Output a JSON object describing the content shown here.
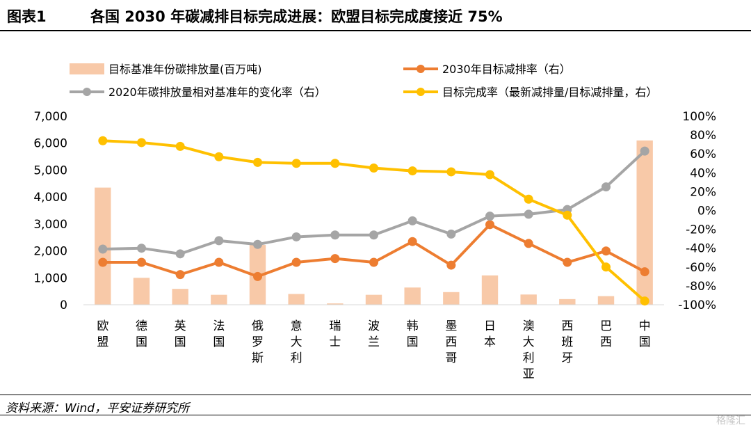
{
  "header": {
    "figure_no": "图表1",
    "title": "各国 2030 年碳减排目标完成进展：欧盟目标完成度接近 75%"
  },
  "footer": {
    "source": "资料来源：Wind，平安证券研究所",
    "watermark": "格隆汇"
  },
  "chart_data": {
    "type": "bar",
    "categories": [
      "欧盟",
      "德国",
      "英国",
      "法国",
      "俄罗斯",
      "意大利",
      "瑞士",
      "波兰",
      "韩国",
      "墨西哥",
      "日本",
      "澳大利亚",
      "西班牙",
      "巴西",
      "中国"
    ],
    "left_axis": {
      "ylim": [
        0,
        7000
      ],
      "ticks": [
        0,
        1000,
        2000,
        3000,
        4000,
        5000,
        6000,
        7000
      ],
      "tick_labels": [
        "0",
        "1,000",
        "2,000",
        "3,000",
        "4,000",
        "5,000",
        "6,000",
        "7,000"
      ]
    },
    "right_axis": {
      "ylim": [
        -100,
        100
      ],
      "ticks": [
        -100,
        -80,
        -60,
        -40,
        -20,
        0,
        20,
        40,
        60,
        80,
        100
      ],
      "tick_labels": [
        "-100%",
        "-80%",
        "-60%",
        "-40%",
        "-20%",
        "0%",
        "20%",
        "40%",
        "60%",
        "80%",
        "100%"
      ]
    },
    "legend_position": "top",
    "grid": false,
    "series": [
      {
        "name": "目标基准年份碳排放量(百万吨)",
        "type": "bar",
        "axis": "left",
        "color": "#f8c9a8",
        "values": [
          4350,
          1000,
          590,
          370,
          2220,
          400,
          50,
          370,
          640,
          470,
          1090,
          380,
          210,
          320,
          6100
        ]
      },
      {
        "name": "2030年目标减排率（右）",
        "type": "line",
        "axis": "right",
        "color": "#ed7d31",
        "values": [
          -55,
          -55,
          -68,
          -55,
          -70,
          -55,
          -51,
          -55,
          -33,
          -58,
          -15,
          -35,
          -55,
          -43,
          -65
        ]
      },
      {
        "name": "2020年碳排放量相对基准年的变化率（右）",
        "type": "line",
        "axis": "right",
        "color": "#a5a5a5",
        "values": [
          -41,
          -40,
          -46,
          -32,
          -36,
          -28,
          -26,
          -26,
          -11,
          -25,
          -6,
          -4,
          1,
          25,
          63
        ]
      },
      {
        "name": "目标完成率（最新减排量/目标减排量，右）",
        "type": "line",
        "axis": "right",
        "color": "#ffc000",
        "values": [
          74,
          72,
          68,
          57,
          51,
          50,
          50,
          45,
          42,
          41,
          38,
          12,
          -5,
          -60,
          -96
        ]
      }
    ]
  }
}
